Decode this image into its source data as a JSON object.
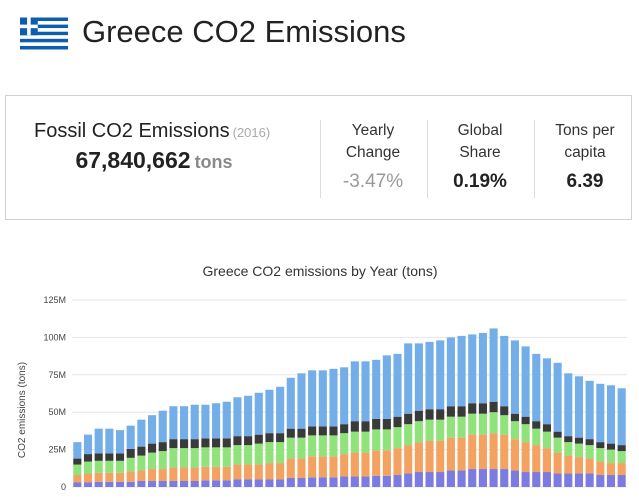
{
  "header": {
    "title": "Greece CO2 Emissions",
    "flag_colors": {
      "blue": "#0d5eaf",
      "white": "#ffffff"
    }
  },
  "stats": {
    "fossil": {
      "label": "Fossil CO2 Emissions",
      "year": "(2016)",
      "value": "67,840,662",
      "unit": "tons"
    },
    "yearly_change": {
      "label_line1": "Yearly",
      "label_line2": "Change",
      "value": "-3.47%"
    },
    "global_share": {
      "label_line1": "Global",
      "label_line2": "Share",
      "value": "0.19%"
    },
    "per_capita": {
      "label_line1": "Tons per",
      "label_line2": "capita",
      "value": "6.39"
    }
  },
  "chart_data": {
    "type": "bar",
    "stacked": true,
    "title": "Greece CO2 emissions by Year (tons)",
    "ylabel": "CO2 emissions (tons)",
    "xlabel": "",
    "ylim": [
      0,
      125000000
    ],
    "yticks": [
      0,
      25000000,
      50000000,
      75000000,
      100000000,
      125000000
    ],
    "ytick_labels": [
      "0",
      "25M",
      "50M",
      "75M",
      "100M",
      "125M"
    ],
    "grid": true,
    "bar_count": 52,
    "totals": [
      30,
      35,
      39,
      39,
      38,
      41,
      45,
      48,
      51,
      54,
      54,
      55,
      55,
      56,
      57,
      60,
      61,
      63,
      65,
      67,
      73,
      76,
      78,
      78,
      79,
      80,
      84,
      84,
      85,
      88,
      89,
      96,
      96,
      97,
      98,
      100,
      101,
      102,
      103,
      106,
      101,
      98,
      94,
      89,
      86,
      83,
      76,
      74,
      71,
      69,
      68,
      66
    ],
    "series": [
      {
        "color": "#7b7be0",
        "values": [
          3,
          3,
          3.5,
          3.5,
          3.5,
          3.5,
          4,
          4,
          4,
          4,
          4,
          4,
          4.5,
          4.5,
          4.5,
          5,
          5,
          5,
          5,
          5,
          6,
          6,
          6.5,
          6.5,
          6.5,
          7,
          7,
          7,
          7.5,
          7.5,
          8,
          9,
          10,
          10,
          10,
          11,
          11,
          12,
          12,
          12,
          12,
          11,
          10,
          10,
          10,
          9,
          9,
          9,
          9,
          8,
          8,
          8
        ]
      },
      {
        "color": "#f4a261",
        "values": [
          5,
          6,
          6,
          6,
          6,
          7,
          7,
          8,
          8,
          9,
          9,
          9,
          9,
          9,
          9,
          10,
          10,
          10,
          11,
          11,
          13,
          13,
          14,
          14,
          14,
          15,
          16,
          16,
          17,
          17,
          18,
          19,
          20,
          21,
          21,
          22,
          22,
          23,
          23,
          24,
          23,
          21,
          20,
          18,
          16,
          14,
          12,
          11,
          10,
          9,
          8,
          8
        ]
      },
      {
        "color": "#90e27a",
        "values": [
          7,
          8,
          8,
          8,
          8,
          9,
          10,
          11,
          12,
          13,
          13,
          13,
          13,
          13,
          13,
          13,
          13,
          14,
          14,
          14,
          14,
          14,
          14,
          14,
          14,
          14,
          14,
          14,
          14,
          14,
          14,
          14,
          14,
          14,
          14,
          14,
          14,
          14,
          14,
          14,
          13,
          12,
          12,
          11,
          11,
          10,
          9,
          9,
          9,
          9,
          9,
          8
        ]
      },
      {
        "color": "#3a3a3a",
        "values": [
          4,
          5,
          5,
          5,
          5,
          6,
          6,
          6,
          6,
          6,
          6,
          6,
          6,
          6,
          6,
          6,
          6,
          6,
          6,
          6,
          6,
          6,
          6,
          6,
          6,
          6,
          7,
          7,
          7,
          7,
          7,
          7,
          7,
          7,
          7,
          7,
          7,
          7,
          7,
          7,
          6,
          5,
          5,
          5,
          5,
          4,
          4,
          4,
          4,
          4,
          4,
          4
        ]
      },
      {
        "color": "#74aee8",
        "values": [
          11,
          13,
          16.5,
          16.5,
          15.5,
          15.5,
          18,
          19,
          21,
          22,
          22,
          23,
          22.5,
          23.5,
          24.5,
          26,
          27,
          28,
          29,
          31,
          34,
          37,
          37.5,
          37.5,
          38.5,
          38,
          40,
          40,
          39.5,
          42.5,
          42,
          47,
          45,
          45,
          46,
          46,
          47,
          46,
          47,
          49,
          47,
          49,
          47,
          45,
          44,
          46,
          42,
          41,
          39,
          39,
          39,
          38
        ]
      }
    ]
  }
}
